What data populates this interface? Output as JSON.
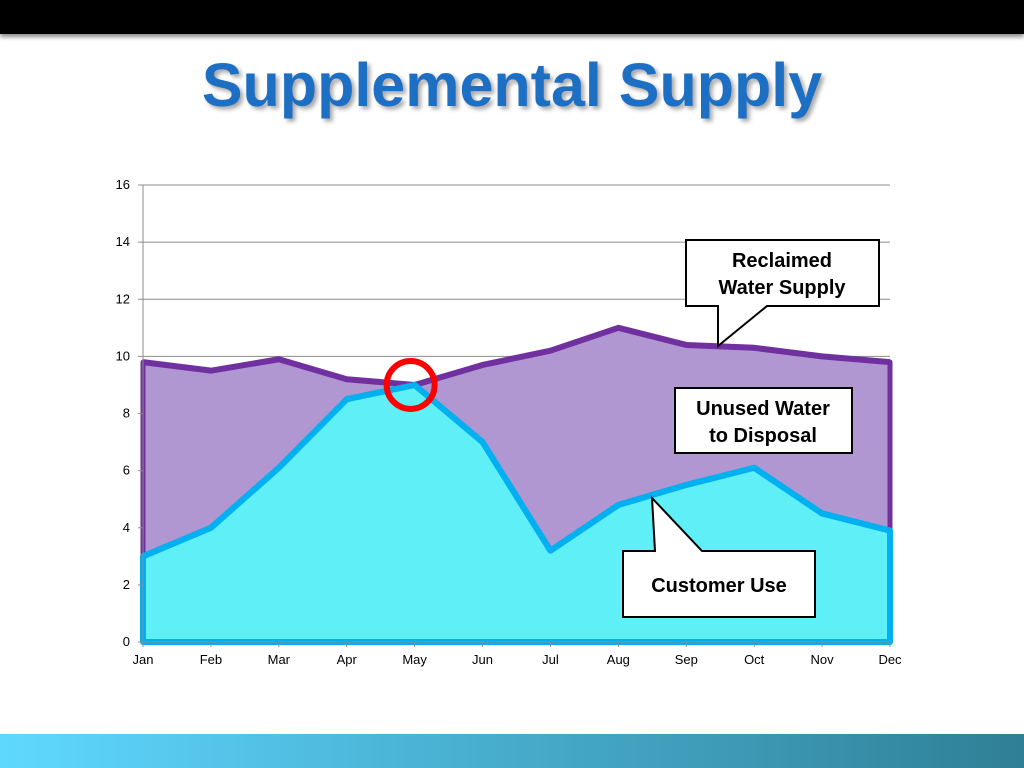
{
  "slide": {
    "title": "Supplemental Supply"
  },
  "colors": {
    "top_bar": "#000000",
    "title": "#1d6fc4",
    "supply_fill": "#b197d2",
    "supply_line": "#7030a0",
    "use_fill": "#5eeff7",
    "use_line": "#00b0f0",
    "marker": "#ff0000",
    "bottom_bar_start": "#5fd8ff",
    "bottom_bar_end": "#2f7f96"
  },
  "chart_data": {
    "type": "area",
    "categories": [
      "Jan",
      "Feb",
      "Mar",
      "Apr",
      "May",
      "Jun",
      "Jul",
      "Aug",
      "Sep",
      "Oct",
      "Nov",
      "Dec"
    ],
    "series": [
      {
        "values": [
          9.8,
          9.5,
          9.9,
          9.2,
          9.0,
          9.7,
          10.2,
          11.0,
          10.4,
          10.3,
          10.0,
          9.8
        ]
      },
      {
        "values": [
          3.0,
          4.0,
          6.1,
          8.5,
          9.0,
          7.0,
          3.2,
          4.8,
          5.5,
          6.1,
          4.5,
          3.9
        ]
      }
    ],
    "ylim": [
      0,
      16
    ],
    "yticks": [
      0,
      2,
      4,
      6,
      8,
      10,
      12,
      14,
      16
    ],
    "grid": true,
    "legend": "none",
    "marker": {
      "category": "May",
      "value": 9.0,
      "shape": "circle"
    },
    "annotations": [
      {
        "lines": [
          "Reclaimed",
          "Water Supply"
        ],
        "target": "upper series"
      },
      {
        "lines": [
          "Unused Water",
          "to Disposal"
        ],
        "target": "area between series"
      },
      {
        "lines": [
          "Customer Use"
        ],
        "target": "lower series"
      }
    ]
  }
}
